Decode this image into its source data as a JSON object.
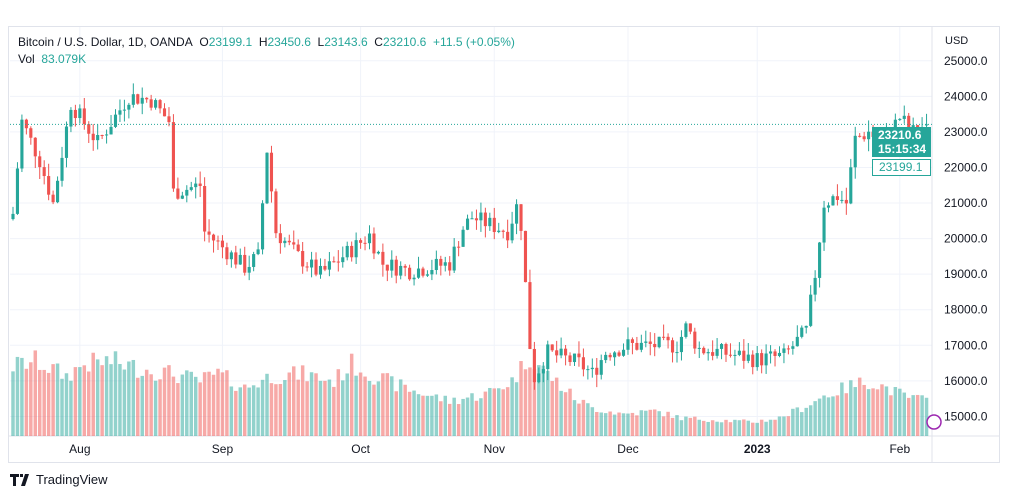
{
  "header": {
    "symbol": "Bitcoin / U.S. Dollar, 1D, OANDA",
    "open_label": "O",
    "open": "23199.1",
    "high_label": "H",
    "high": "23450.6",
    "low_label": "L",
    "low": "23143.6",
    "close_label": "C",
    "close": "23210.6",
    "change": "+11.5 (+0.05%)",
    "vol_label": "Vol",
    "vol": "83.079K"
  },
  "price_axis": {
    "currency": "USD",
    "last_price": "23210.6",
    "countdown": "15:15:34",
    "open_price": "23199.1"
  },
  "branding": {
    "name": "TradingView"
  },
  "colors": {
    "up": "#26a69a",
    "down": "#ef5350",
    "grid": "#f0f3fa"
  },
  "chart_data": {
    "type": "candlestick",
    "title": "Bitcoin / U.S. Dollar, 1D, OANDA",
    "ylabel": "USD",
    "ylim": [
      14450,
      25950
    ],
    "y_ticks": [
      "25000.0",
      "24000.0",
      "23000.0",
      "22000.0",
      "21000.0",
      "20000.0",
      "19000.0",
      "18000.0",
      "17000.0",
      "16000.0",
      "15000.0"
    ],
    "y_tick_values": [
      25000,
      24000,
      23000,
      22000,
      21000,
      20000,
      19000,
      18000,
      17000,
      16000,
      15000
    ],
    "x_ticks": [
      {
        "label": "Aug",
        "day": 15
      },
      {
        "label": "Sep",
        "day": 47
      },
      {
        "label": "Oct",
        "day": 78
      },
      {
        "label": "Nov",
        "day": 108
      },
      {
        "label": "Dec",
        "day": 138
      },
      {
        "label": "2023",
        "day": 167
      },
      {
        "label": "Feb",
        "day": 199
      }
    ],
    "num_days": 206,
    "close_keypoints": [
      [
        0,
        20700
      ],
      [
        2,
        23300
      ],
      [
        6,
        22200
      ],
      [
        9,
        21000
      ],
      [
        13,
        23800
      ],
      [
        19,
        22700
      ],
      [
        26,
        24000
      ],
      [
        31,
        23900
      ],
      [
        35,
        23300
      ],
      [
        36,
        21300
      ],
      [
        42,
        21500
      ],
      [
        43,
        20200
      ],
      [
        52,
        19200
      ],
      [
        55,
        19500
      ],
      [
        57,
        22500
      ],
      [
        59,
        20200
      ],
      [
        64,
        19500
      ],
      [
        69,
        19000
      ],
      [
        74,
        19500
      ],
      [
        80,
        20100
      ],
      [
        83,
        19300
      ],
      [
        89,
        19100
      ],
      [
        98,
        19300
      ],
      [
        101,
        20300
      ],
      [
        103,
        20600
      ],
      [
        111,
        20200
      ],
      [
        113,
        20900
      ],
      [
        114,
        20400
      ],
      [
        116,
        17000
      ],
      [
        117,
        16100
      ],
      [
        120,
        16800
      ],
      [
        127,
        16500
      ],
      [
        130,
        16200
      ],
      [
        133,
        16800
      ],
      [
        138,
        17000
      ],
      [
        149,
        17000
      ],
      [
        151,
        17500
      ],
      [
        154,
        16900
      ],
      [
        159,
        16800
      ],
      [
        167,
        16600
      ],
      [
        173,
        16700
      ],
      [
        178,
        17400
      ],
      [
        180,
        19000
      ],
      [
        182,
        21000
      ],
      [
        185,
        21200
      ],
      [
        187,
        21000
      ],
      [
        189,
        22800
      ],
      [
        192,
        23000
      ],
      [
        195,
        22700
      ],
      [
        199,
        23400
      ],
      [
        202,
        23000
      ],
      [
        205,
        23210.6
      ]
    ],
    "volume_keypoints": [
      [
        0,
        70
      ],
      [
        5,
        75
      ],
      [
        12,
        60
      ],
      [
        16,
        72
      ],
      [
        22,
        75
      ],
      [
        28,
        68
      ],
      [
        36,
        62
      ],
      [
        42,
        55
      ],
      [
        46,
        62
      ],
      [
        52,
        48
      ],
      [
        58,
        60
      ],
      [
        65,
        62
      ],
      [
        72,
        55
      ],
      [
        76,
        72
      ],
      [
        82,
        58
      ],
      [
        90,
        45
      ],
      [
        98,
        35
      ],
      [
        106,
        42
      ],
      [
        112,
        55
      ],
      [
        116,
        80
      ],
      [
        120,
        62
      ],
      [
        126,
        38
      ],
      [
        130,
        28
      ],
      [
        137,
        22
      ],
      [
        144,
        25
      ],
      [
        150,
        18
      ],
      [
        158,
        16
      ],
      [
        166,
        14
      ],
      [
        172,
        18
      ],
      [
        178,
        30
      ],
      [
        182,
        40
      ],
      [
        188,
        50
      ],
      [
        192,
        55
      ],
      [
        196,
        48
      ],
      [
        200,
        40
      ],
      [
        205,
        35
      ]
    ],
    "volume_max": 100
  }
}
